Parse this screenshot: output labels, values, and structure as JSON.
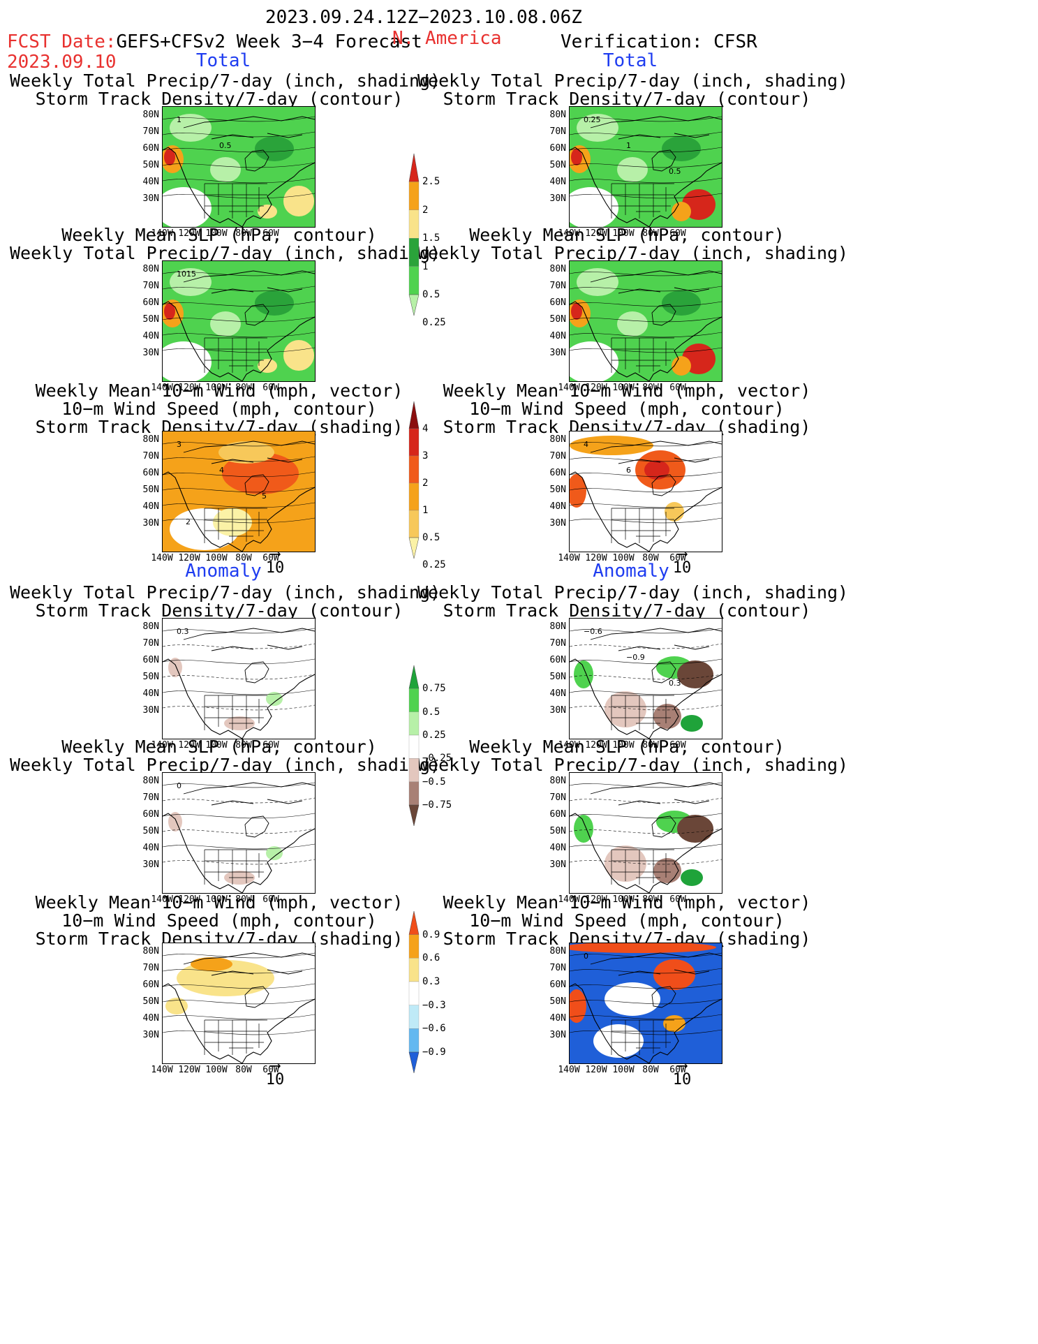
{
  "header": {
    "period": "2023.09.24.12Z−2023.10.08.06Z",
    "fcst_date_label": "FCST Date:",
    "forecast_name": "GEFS+CFSv2 Week 3−4 Forecast",
    "fcst_date": "2023.09.10",
    "region": "N. America",
    "verification": "Verification: CFSR"
  },
  "sections": {
    "total": "Total",
    "anomaly": "Anomaly"
  },
  "titles": {
    "precip_storm": [
      "Weekly Total Precip/7-day (inch, shading)",
      "Storm Track Density/7-day (contour)"
    ],
    "slp_precip": [
      "Weekly Mean SLP (hPa, contour)",
      "Weekly Total Precip/7-day (inch, shading)"
    ],
    "wind_storm": [
      "Weekly Mean 10−m Wind (mph, vector)",
      "10−m Wind Speed (mph, contour)",
      "Storm Track Density/7-day (shading)"
    ]
  },
  "axes": {
    "lat": [
      "80N",
      "70N",
      "60N",
      "50N",
      "40N",
      "30N"
    ],
    "lon": [
      "140W",
      "120W",
      "100W",
      "80W",
      "60W"
    ]
  },
  "vector_ref": "10",
  "colorbars": {
    "precip_total": {
      "labels": [
        "2.5",
        "2",
        "1.5",
        "1",
        "0.5",
        "0.25"
      ],
      "colors": [
        "#d6261b",
        "#f5a21a",
        "#f9e38a",
        "#2aa33a",
        "#4fd24f",
        "#b7f0a8"
      ]
    },
    "storm_total": {
      "labels": [
        "4",
        "3",
        "2",
        "1",
        "0.5",
        "0.25"
      ],
      "colors": [
        "#8a0e0e",
        "#d6261b",
        "#f05a1a",
        "#f5a21a",
        "#f7c85a",
        "#fbf2a6"
      ]
    },
    "precip_anom": {
      "labels": [
        "0.75",
        "0.5",
        "0.25",
        "−0.25",
        "−0.5",
        "−0.75"
      ],
      "colors": [
        "#1fa33a",
        "#4fd24f",
        "#b7f0a8",
        "#ffffff",
        "#e3c7be",
        "#a88075",
        "#6a4638"
      ]
    },
    "storm_anom": {
      "labels": [
        "0.9",
        "0.6",
        "0.3",
        "−0.3",
        "−0.6",
        "−0.9"
      ],
      "colors": [
        "#f04e1a",
        "#f5a21a",
        "#f9e38a",
        "#ffffff",
        "#bfeaf7",
        "#63b8f0",
        "#1f5fd8"
      ]
    }
  },
  "contour_labels": {
    "p1": [
      "1",
      "0.5"
    ],
    "p2": [
      "1015"
    ],
    "p3": [
      "3",
      "4",
      "5",
      "2"
    ],
    "p4": [
      "0.3"
    ],
    "p5": [
      "0"
    ],
    "r1": [
      "0.25",
      "1",
      "0.5"
    ],
    "r3": [
      "4",
      "6"
    ],
    "r4": [
      "−0.6",
      "−0.9",
      "0.3"
    ],
    "r6": [
      "0"
    ]
  }
}
